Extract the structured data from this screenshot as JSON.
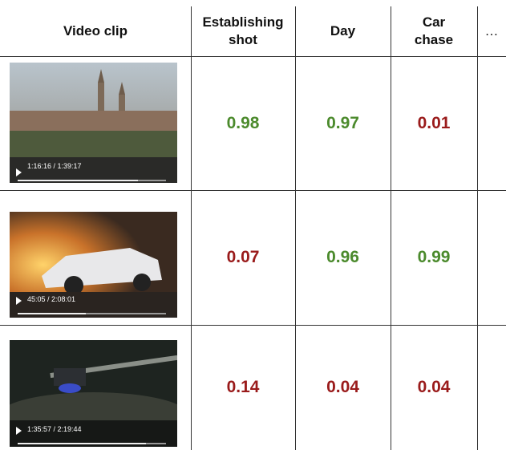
{
  "header": {
    "columns": [
      "Video clip",
      "Establishing shot",
      "Day",
      "Car chase",
      "…"
    ]
  },
  "score_colors": {
    "high": "#4b8a2c",
    "low": "#9a1b1b"
  },
  "rows": [
    {
      "time": "1:16:16 / 1:39:17",
      "scores": [
        "0.98",
        "0.97",
        "0.01"
      ]
    },
    {
      "time": "45:05 / 2:08:01",
      "scores": [
        "0.07",
        "0.96",
        "0.99"
      ]
    },
    {
      "time": "1:35:57 / 2:19:44",
      "scores": [
        "0.14",
        "0.04",
        "0.04"
      ]
    }
  ]
}
